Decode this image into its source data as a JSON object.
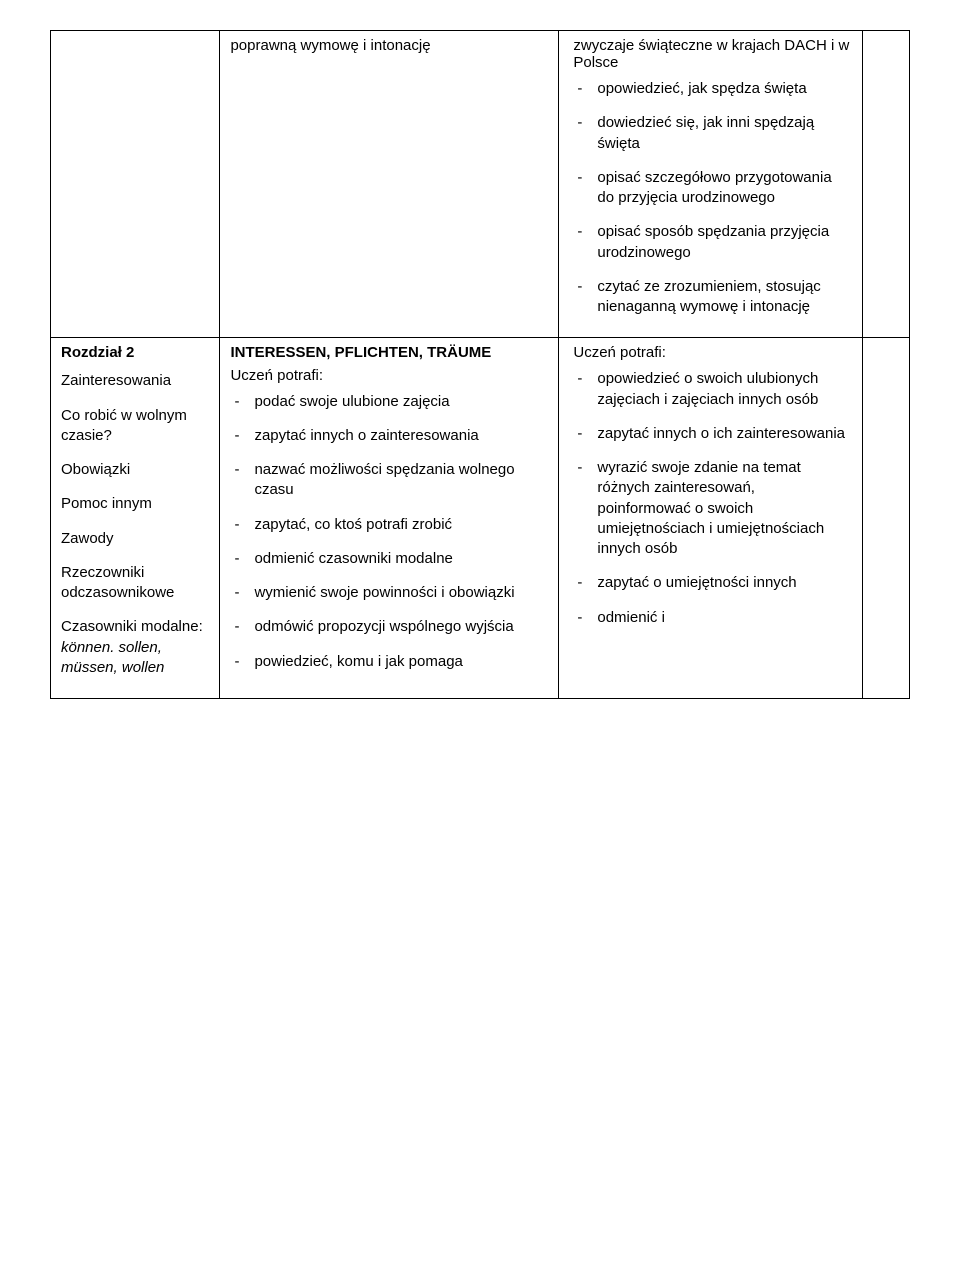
{
  "row1": {
    "col2_top": "poprawną wymowę i intonację",
    "col3_top": "zwyczaje świąteczne w krajach DACH i w Polsce",
    "col3_items": [
      "opowiedzieć, jak spędza święta",
      "dowiedzieć się, jak inni spędzają święta",
      "opisać szczegółowo przygotowania do przyjęcia urodzinowego",
      "opisać sposób spędzania przyjęcia urodzinowego",
      "czytać ze zrozumieniem, stosując nienaganną wymowę i intonację"
    ]
  },
  "row2": {
    "chapter_label": "Rozdział 2",
    "chapter_title": "INTERESSEN, PFLICHTEN, TRÄUME",
    "left_paragraphs": [
      "Zainteresowania",
      "Co robić w wolnym czasie?",
      "Obowiązki",
      "Pomoc innym",
      "Zawody",
      "Rzeczowniki odczasownikowe",
      "Czasowniki modalne: können. sollen, müssen, wollen"
    ],
    "col2_lead": "Uczeń potrafi:",
    "col2_items": [
      "podać swoje ulubione zajęcia",
      "zapytać innych o zainteresowania",
      "nazwać możliwości spędzania wolnego czasu",
      "zapytać, co ktoś potrafi zrobić",
      "odmienić czasowniki modalne",
      "wymienić swoje powinności i obowiązki",
      "odmówić propozycji wspólnego wyjścia",
      "powiedzieć, komu i jak pomaga"
    ],
    "col3_lead": "Uczeń potrafi:",
    "col3_items": [
      "opowiedzieć o swoich ulubionych zajęciach i zajęciach innych osób",
      "zapytać innych o ich zainteresowania",
      "wyrazić swoje zdanie na temat różnych zainteresowań, poinformować o swoich umiejętnościach i umiejętnościach innych osób",
      "zapytać o umiejętności innych",
      "odmienić i"
    ]
  },
  "italic_words": "können. sollen, müssen, wollen"
}
